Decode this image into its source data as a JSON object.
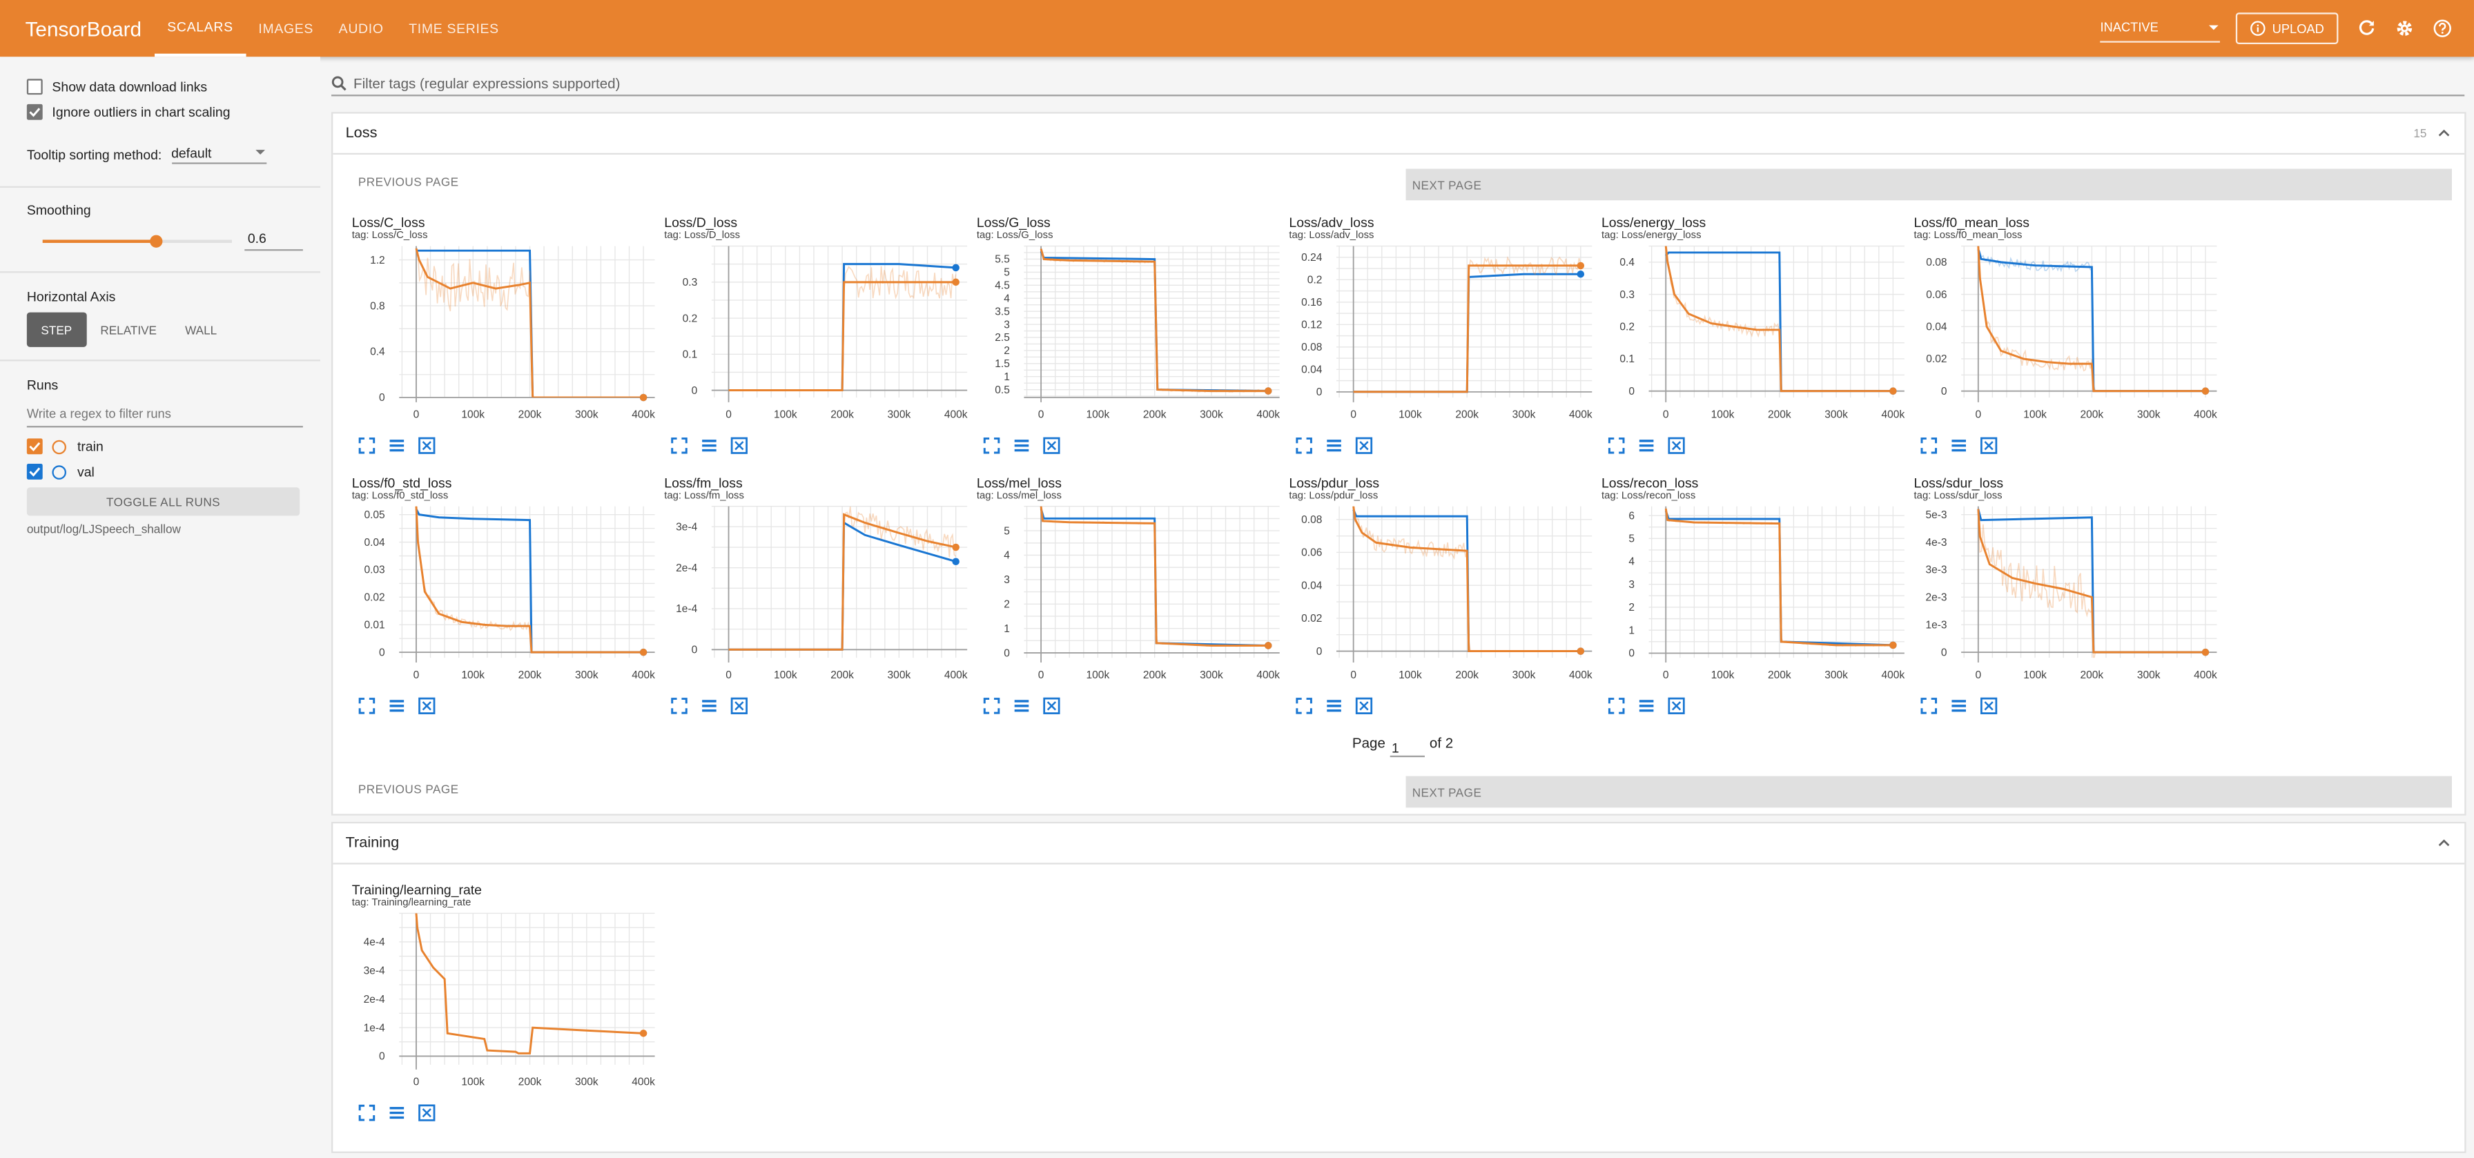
{
  "header": {
    "brand": "TensorBoard",
    "tabs": [
      {
        "label": "SCALARS",
        "active": true
      },
      {
        "label": "IMAGES",
        "active": false
      },
      {
        "label": "AUDIO",
        "active": false
      },
      {
        "label": "TIME SERIES",
        "active": false
      }
    ],
    "run_status": "INACTIVE",
    "upload_label": "UPLOAD",
    "accent_color": "#e8822e"
  },
  "sidebar": {
    "show_download_links": "Show data download links",
    "ignore_outliers": "Ignore outliers in chart scaling",
    "tooltip_label": "Tooltip sorting method:",
    "tooltip_value": "default",
    "smoothing_title": "Smoothing",
    "smoothing_value": "0.6",
    "smoothing_fraction": 0.6,
    "haxis_title": "Horizontal Axis",
    "haxis_options": [
      "STEP",
      "RELATIVE",
      "WALL"
    ],
    "runs_title": "Runs",
    "runs_filter_placeholder": "Write a regex to filter runs",
    "runs": [
      {
        "name": "train",
        "color": "#e8822e",
        "checked": true
      },
      {
        "name": "val",
        "color": "#1976d2",
        "checked": true
      }
    ],
    "toggle_all": "TOGGLE ALL RUNS",
    "log_path": "output/log/LJSpeech_shallow"
  },
  "main": {
    "filter_placeholder": "Filter tags (regular expressions supported)",
    "loss_group": {
      "title": "Loss",
      "count": "15",
      "prev_label": "PREVIOUS PAGE",
      "next_label": "NEXT PAGE",
      "page_label": "Page",
      "page_value": "1",
      "page_of": "of 2"
    },
    "training_group": {
      "title": "Training"
    }
  },
  "chart_data": [
    {
      "type": "line",
      "title": "Loss/C_loss",
      "tag": "tag: Loss/C_loss",
      "x_ticks": [
        "0",
        "100k",
        "200k",
        "300k",
        "400k"
      ],
      "y_ticks": [
        "0",
        "0.4",
        "0.8",
        "1.2"
      ],
      "ylim": [
        0,
        1.32
      ],
      "xlim": [
        -30000,
        420000
      ],
      "series": [
        {
          "name": "train",
          "x": [
            0,
            5000,
            20000,
            60000,
            100000,
            140000,
            180000,
            200000,
            205000,
            400000
          ],
          "y": [
            1.3,
            1.2,
            1.05,
            0.95,
            1.0,
            0.95,
            0.98,
            1.0,
            0.0,
            0.0
          ],
          "noise": 0.22
        },
        {
          "name": "val",
          "x": [
            0,
            200000,
            205000,
            400000
          ],
          "y": [
            1.28,
            1.28,
            0.0,
            0.0
          ]
        }
      ]
    },
    {
      "type": "line",
      "title": "Loss/D_loss",
      "tag": "tag: Loss/D_loss",
      "x_ticks": [
        "0",
        "100k",
        "200k",
        "300k",
        "400k"
      ],
      "y_ticks": [
        "0",
        "0.1",
        "0.2",
        "0.3"
      ],
      "ylim": [
        -0.02,
        0.4
      ],
      "xlim": [
        -30000,
        420000
      ],
      "series": [
        {
          "name": "train",
          "x": [
            0,
            200000,
            203000,
            300000,
            400000
          ],
          "y": [
            0.0,
            0.0,
            0.3,
            0.3,
            0.3
          ],
          "noise": 0.045
        },
        {
          "name": "val",
          "x": [
            0,
            200000,
            203000,
            300000,
            400000
          ],
          "y": [
            0.0,
            0.0,
            0.35,
            0.35,
            0.34
          ]
        }
      ]
    },
    {
      "type": "line",
      "title": "Loss/G_loss",
      "tag": "tag: Loss/G_loss",
      "x_ticks": [
        "0",
        "100k",
        "200k",
        "300k",
        "400k"
      ],
      "y_ticks": [
        "0.5",
        "1",
        "1.5",
        "2",
        "2.5",
        "3",
        "3.5",
        "4",
        "4.5",
        "5",
        "5.5"
      ],
      "ylim": [
        0.2,
        6.0
      ],
      "xlim": [
        -30000,
        420000
      ],
      "series": [
        {
          "name": "train",
          "x": [
            0,
            5000,
            50000,
            200000,
            205000,
            300000,
            400000
          ],
          "y": [
            5.9,
            5.5,
            5.45,
            5.4,
            0.5,
            0.45,
            0.45
          ],
          "noise": 0.05
        },
        {
          "name": "val",
          "x": [
            0,
            5000,
            200000,
            205000,
            400000
          ],
          "y": [
            5.8,
            5.55,
            5.5,
            0.5,
            0.45
          ]
        }
      ]
    },
    {
      "type": "line",
      "title": "Loss/adv_loss",
      "tag": "tag: Loss/adv_loss",
      "x_ticks": [
        "0",
        "100k",
        "200k",
        "300k",
        "400k"
      ],
      "y_ticks": [
        "0",
        "0.04",
        "0.08",
        "0.12",
        "0.16",
        "0.2",
        "0.24"
      ],
      "ylim": [
        -0.01,
        0.26
      ],
      "xlim": [
        -30000,
        420000
      ],
      "series": [
        {
          "name": "train",
          "x": [
            0,
            200000,
            203000,
            300000,
            400000
          ],
          "y": [
            0.0,
            0.0,
            0.225,
            0.225,
            0.225
          ],
          "noise": 0.015
        },
        {
          "name": "val",
          "x": [
            0,
            200000,
            203000,
            300000,
            400000
          ],
          "y": [
            0.0,
            0.0,
            0.205,
            0.21,
            0.21
          ]
        }
      ]
    },
    {
      "type": "line",
      "title": "Loss/energy_loss",
      "tag": "tag: Loss/energy_loss",
      "x_ticks": [
        "0",
        "100k",
        "200k",
        "300k",
        "400k"
      ],
      "y_ticks": [
        "0",
        "0.1",
        "0.2",
        "0.3",
        "0.4"
      ],
      "ylim": [
        -0.02,
        0.45
      ],
      "xlim": [
        -30000,
        420000
      ],
      "series": [
        {
          "name": "train",
          "x": [
            0,
            3000,
            15000,
            40000,
            80000,
            120000,
            160000,
            200000,
            203000,
            400000
          ],
          "y": [
            0.45,
            0.4,
            0.3,
            0.24,
            0.21,
            0.2,
            0.19,
            0.19,
            0.0,
            0.0
          ],
          "noise": 0.02
        },
        {
          "name": "val",
          "x": [
            0,
            5000,
            200000,
            203000,
            400000
          ],
          "y": [
            0.42,
            0.43,
            0.43,
            0.0,
            0.0
          ]
        }
      ]
    },
    {
      "type": "line",
      "title": "Loss/f0_mean_loss",
      "tag": "tag: Loss/f0_mean_loss",
      "x_ticks": [
        "0",
        "100k",
        "200k",
        "300k",
        "400k"
      ],
      "y_ticks": [
        "0",
        "0.02",
        "0.04",
        "0.06",
        "0.08"
      ],
      "ylim": [
        -0.004,
        0.09
      ],
      "xlim": [
        -30000,
        420000
      ],
      "series": [
        {
          "name": "train",
          "x": [
            0,
            3000,
            15000,
            40000,
            80000,
            120000,
            160000,
            200000,
            203000,
            400000
          ],
          "y": [
            0.09,
            0.07,
            0.04,
            0.025,
            0.02,
            0.018,
            0.017,
            0.017,
            0.0,
            0.0
          ],
          "noise": 0.005
        },
        {
          "name": "val",
          "x": [
            0,
            5000,
            40000,
            100000,
            200000,
            203000,
            400000
          ],
          "y": [
            0.088,
            0.082,
            0.08,
            0.078,
            0.077,
            0.0,
            0.0
          ],
          "noise": 0.003
        }
      ]
    },
    {
      "type": "line",
      "title": "Loss/f0_std_loss",
      "tag": "tag: Loss/f0_std_loss",
      "x_ticks": [
        "0",
        "100k",
        "200k",
        "300k",
        "400k"
      ],
      "y_ticks": [
        "0",
        "0.01",
        "0.02",
        "0.03",
        "0.04",
        "0.05"
      ],
      "ylim": [
        -0.002,
        0.053
      ],
      "xlim": [
        -30000,
        420000
      ],
      "series": [
        {
          "name": "train",
          "x": [
            0,
            3000,
            15000,
            40000,
            80000,
            120000,
            160000,
            200000,
            203000,
            400000
          ],
          "y": [
            0.053,
            0.04,
            0.022,
            0.014,
            0.011,
            0.01,
            0.0095,
            0.0095,
            0.0,
            0.0
          ],
          "noise": 0.0015
        },
        {
          "name": "val",
          "x": [
            0,
            5000,
            40000,
            100000,
            200000,
            203000,
            400000
          ],
          "y": [
            0.052,
            0.05,
            0.049,
            0.0485,
            0.048,
            0.0,
            0.0
          ]
        }
      ]
    },
    {
      "type": "line",
      "title": "Loss/fm_loss",
      "tag": "tag: Loss/fm_loss",
      "x_ticks": [
        "0",
        "100k",
        "200k",
        "300k",
        "400k"
      ],
      "y_ticks": [
        "0",
        "1e-4",
        "2e-4",
        "3e-4"
      ],
      "ylim": [
        -2e-05,
        0.00035
      ],
      "xlim": [
        -30000,
        420000
      ],
      "series": [
        {
          "name": "train",
          "x": [
            0,
            200000,
            203000,
            240000,
            300000,
            350000,
            400000
          ],
          "y": [
            0.0,
            0.0,
            0.00033,
            0.00031,
            0.000285,
            0.000265,
            0.00025
          ],
          "noise": 3e-05
        },
        {
          "name": "val",
          "x": [
            0,
            200000,
            203000,
            240000,
            300000,
            350000,
            400000
          ],
          "y": [
            0.0,
            0.0,
            0.00031,
            0.00028,
            0.000255,
            0.000235,
            0.000215
          ]
        }
      ]
    },
    {
      "type": "line",
      "title": "Loss/mel_loss",
      "tag": "tag: Loss/mel_loss",
      "x_ticks": [
        "0",
        "100k",
        "200k",
        "300k",
        "400k"
      ],
      "y_ticks": [
        "0",
        "1",
        "2",
        "3",
        "4",
        "5"
      ],
      "ylim": [
        -0.2,
        6.0
      ],
      "xlim": [
        -30000,
        420000
      ],
      "series": [
        {
          "name": "train",
          "x": [
            0,
            3000,
            50000,
            200000,
            203000,
            300000,
            400000
          ],
          "y": [
            6.0,
            5.4,
            5.35,
            5.3,
            0.4,
            0.3,
            0.3
          ],
          "noise": 0.03
        },
        {
          "name": "val",
          "x": [
            0,
            5000,
            200000,
            203000,
            400000
          ],
          "y": [
            5.9,
            5.5,
            5.5,
            0.4,
            0.3
          ]
        }
      ]
    },
    {
      "type": "line",
      "title": "Loss/pdur_loss",
      "tag": "tag: Loss/pdur_loss",
      "x_ticks": [
        "0",
        "100k",
        "200k",
        "300k",
        "400k"
      ],
      "y_ticks": [
        "0",
        "0.02",
        "0.04",
        "0.06",
        "0.08"
      ],
      "ylim": [
        -0.004,
        0.088
      ],
      "xlim": [
        -30000,
        420000
      ],
      "series": [
        {
          "name": "train",
          "x": [
            0,
            3000,
            15000,
            40000,
            100000,
            200000,
            203000,
            400000
          ],
          "y": [
            0.088,
            0.08,
            0.072,
            0.066,
            0.063,
            0.061,
            0.0,
            0.0
          ],
          "noise": 0.005
        },
        {
          "name": "val",
          "x": [
            0,
            5000,
            200000,
            203000,
            400000
          ],
          "y": [
            0.086,
            0.082,
            0.082,
            0.0,
            0.0
          ]
        }
      ]
    },
    {
      "type": "line",
      "title": "Loss/recon_loss",
      "tag": "tag: Loss/recon_loss",
      "x_ticks": [
        "0",
        "100k",
        "200k",
        "300k",
        "400k"
      ],
      "y_ticks": [
        "0",
        "1",
        "2",
        "3",
        "4",
        "5",
        "6"
      ],
      "ylim": [
        -0.2,
        6.4
      ],
      "xlim": [
        -30000,
        420000
      ],
      "series": [
        {
          "name": "train",
          "x": [
            0,
            3000,
            50000,
            200000,
            203000,
            300000,
            400000
          ],
          "y": [
            6.3,
            5.8,
            5.7,
            5.65,
            0.5,
            0.35,
            0.35
          ],
          "noise": 0.04
        },
        {
          "name": "val",
          "x": [
            0,
            5000,
            200000,
            203000,
            400000
          ],
          "y": [
            6.2,
            5.85,
            5.85,
            0.5,
            0.35
          ]
        }
      ]
    },
    {
      "type": "line",
      "title": "Loss/sdur_loss",
      "tag": "tag: Loss/sdur_loss",
      "x_ticks": [
        "0",
        "100k",
        "200k",
        "300k",
        "400k"
      ],
      "y_ticks": [
        "0",
        "1e-3",
        "2e-3",
        "3e-3",
        "4e-3",
        "5e-3"
      ],
      "ylim": [
        -0.0002,
        0.0053
      ],
      "xlim": [
        -30000,
        420000
      ],
      "series": [
        {
          "name": "train",
          "x": [
            0,
            3000,
            20000,
            60000,
            100000,
            150000,
            200000,
            203000,
            400000
          ],
          "y": [
            0.0052,
            0.0042,
            0.0032,
            0.0027,
            0.0025,
            0.0023,
            0.002,
            0.0,
            0.0
          ],
          "noise": 0.0008
        },
        {
          "name": "val",
          "x": [
            0,
            5000,
            200000,
            203000,
            400000
          ],
          "y": [
            0.0052,
            0.0048,
            0.0049,
            0.0,
            0.0
          ]
        }
      ]
    },
    {
      "type": "line",
      "title": "Training/learning_rate",
      "tag": "tag: Training/learning_rate",
      "x_ticks": [
        "0",
        "100k",
        "200k",
        "300k",
        "400k"
      ],
      "y_ticks": [
        "0",
        "1e-4",
        "2e-4",
        "3e-4",
        "4e-4"
      ],
      "ylim": [
        -3e-05,
        0.0005
      ],
      "xlim": [
        -30000,
        420000
      ],
      "series": [
        {
          "name": "train",
          "x": [
            0,
            2000,
            10000,
            30000,
            50000,
            55000,
            120000,
            125000,
            175000,
            180000,
            195000,
            200000,
            205000,
            300000,
            400000
          ],
          "y": [
            0.0005,
            0.00045,
            0.00037,
            0.00031,
            0.00027,
            8e-05,
            6e-05,
            2e-05,
            1.5e-05,
            1e-05,
            1e-05,
            1e-05,
            0.0001,
            9e-05,
            8e-05
          ]
        }
      ]
    }
  ]
}
